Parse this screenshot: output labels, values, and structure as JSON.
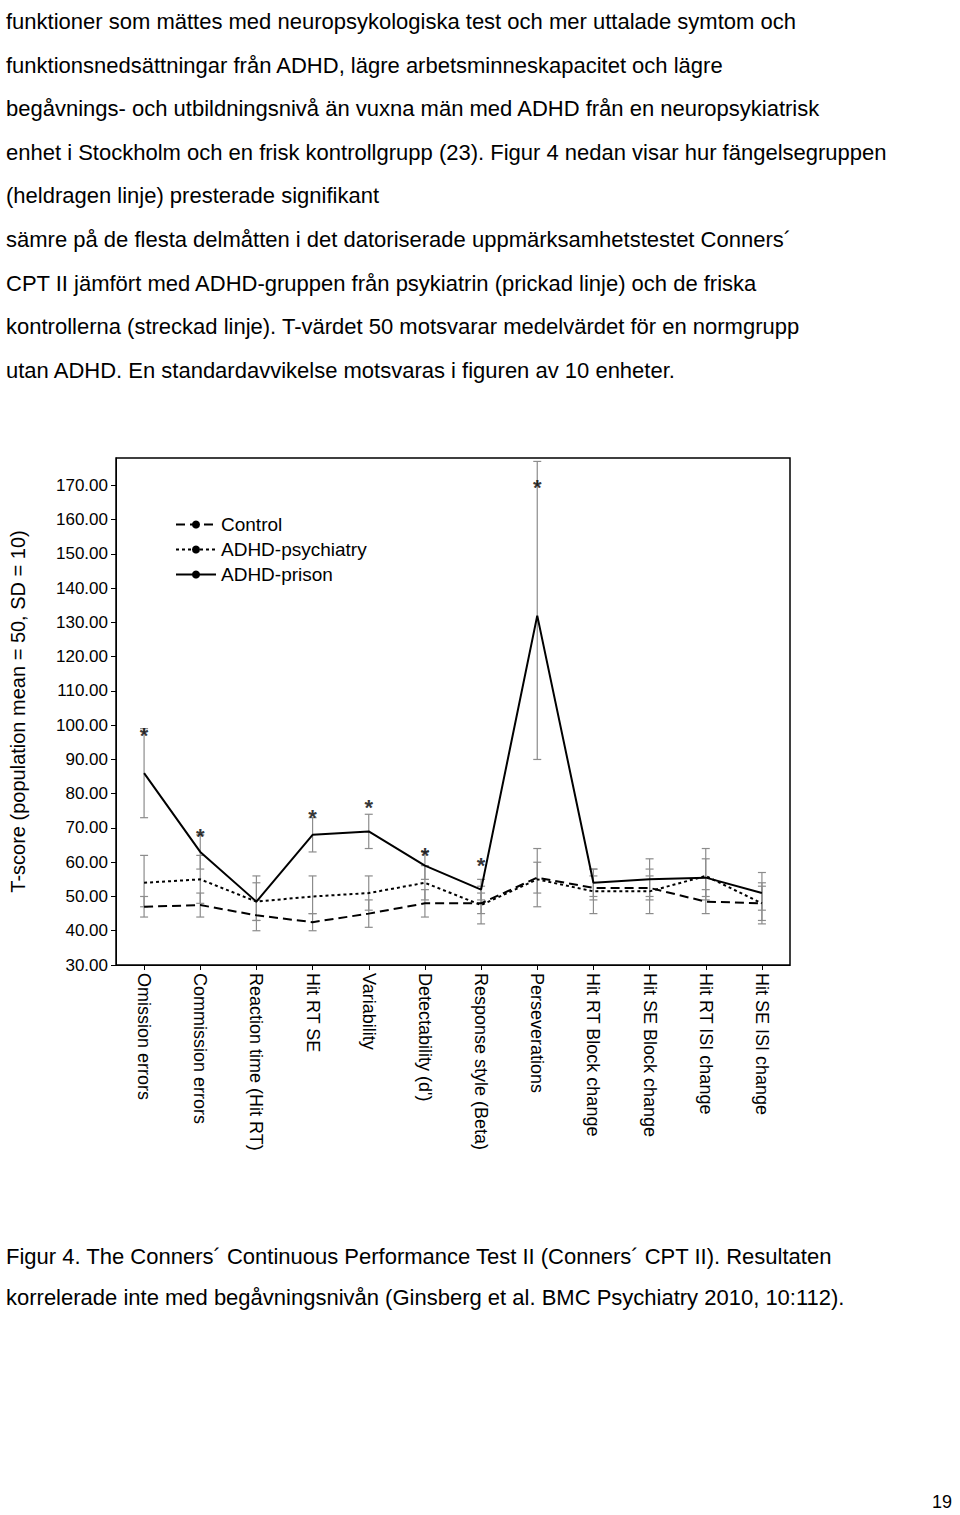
{
  "text_lines": [
    "funktioner som mättes med neuropsykologiska test och mer uttalade symtom och",
    "funktionsnedsättningar från ADHD, lägre arbetsminneskapacitet och lägre",
    "begåvnings- och utbildningsnivå än vuxna män med ADHD från en neuropsykiatrisk",
    "enhet i Stockholm och en frisk kontrollgrupp (23). Figur 4 nedan visar hur fängelsegruppen (heldragen linje) presterade signifikant",
    "sämre på de flesta delmåtten i det datoriserade uppmärksamhetstestet Conners´",
    "CPT II jämfört med ADHD-gruppen från psykiatrin (prickad linje) och de friska",
    "kontrollerna (streckad linje). T-värdet 50 motsvarar medelvärdet för en normgrupp",
    "utan ADHD. En standardavvikelse motsvaras i figuren av 10 enheter."
  ],
  "chart_data": {
    "type": "line",
    "y_label": "T-score (population mean = 50, SD = 10)",
    "categories": [
      "Omission errors",
      "Commission errors",
      "Reaction time (Hit RT)",
      "Hit RT SE",
      "Variability",
      "Detectability (d')",
      "Response style (Beta)",
      "Perseverations",
      "Hit RT Block change",
      "Hit SE Block change",
      "Hit RT ISI change",
      "Hit SE ISI change"
    ],
    "series": [
      {
        "name": "Control",
        "color": "#000000",
        "line_style": "dashed",
        "values": [
          47,
          47.5,
          44.5,
          42.5,
          45,
          48,
          48,
          55.5,
          52.5,
          52.5,
          48.5,
          48
        ],
        "lower": [
          44,
          44,
          40,
          40,
          41,
          44,
          45,
          51,
          49,
          49,
          45,
          43
        ],
        "upper": [
          50,
          51,
          49,
          45,
          49,
          52,
          51,
          60,
          56,
          56,
          52,
          53
        ]
      },
      {
        "name": "ADHD-psychiatry",
        "color": "#000000",
        "line_style": "dotted",
        "values": [
          54,
          55,
          48.5,
          50,
          51,
          54,
          47.5,
          55,
          51.5,
          51.5,
          56,
          48
        ],
        "lower": [
          47,
          48,
          43,
          45,
          46,
          49,
          42,
          47,
          45,
          45,
          49,
          42
        ],
        "upper": [
          62,
          62,
          54,
          56,
          56,
          59,
          53,
          64,
          58,
          58,
          64,
          54
        ]
      },
      {
        "name": "ADHD-prison",
        "color": "#000000",
        "line_style": "solid",
        "values": [
          86,
          63,
          48.5,
          68,
          69,
          59,
          52,
          132,
          54,
          55,
          55.5,
          51
        ],
        "lower": [
          73,
          58,
          43,
          63,
          64,
          55,
          49,
          90,
          50,
          50,
          50,
          46
        ],
        "upper": [
          99,
          68,
          56,
          73,
          74,
          63,
          55,
          177,
          58,
          61,
          61,
          57
        ]
      }
    ],
    "annotations": [
      {
        "category": "Omission errors",
        "y": 97,
        "text": "*"
      },
      {
        "category": "Commission errors",
        "y": 67.5,
        "text": "*"
      },
      {
        "category": "Hit RT SE",
        "y": 73,
        "text": "*"
      },
      {
        "category": "Variability",
        "y": 76,
        "text": "*"
      },
      {
        "category": "Detectability (d')",
        "y": 62,
        "text": "*"
      },
      {
        "category": "Response style (Beta)",
        "y": 59,
        "text": "*"
      },
      {
        "category": "Perseverations",
        "y": 169.5,
        "text": "*"
      }
    ],
    "ylim": [
      30,
      178
    ],
    "yticks": [
      {
        "value": 30,
        "label": "30.00"
      },
      {
        "value": 40,
        "label": "40.00"
      },
      {
        "value": 50,
        "label": "50.00"
      },
      {
        "value": 60,
        "label": "60.00"
      },
      {
        "value": 70,
        "label": "70.00"
      },
      {
        "value": 80,
        "label": "80.00"
      },
      {
        "value": 90,
        "label": "90.00"
      },
      {
        "value": 100,
        "label": "100.00"
      },
      {
        "value": 110,
        "label": "110.00"
      },
      {
        "value": 120,
        "label": "120.00"
      },
      {
        "value": 130,
        "label": "130.00"
      },
      {
        "value": 140,
        "label": "140.00"
      },
      {
        "value": 150,
        "label": "150.00"
      },
      {
        "value": 160,
        "label": "160.00"
      },
      {
        "value": 170,
        "label": "170.00"
      }
    ],
    "legend": "upper left",
    "grid": false
  },
  "caption_lines": [
    "Figur 4. The Conners´ Continuous Performance Test II (Conners´ CPT II). Resultaten",
    "korrelerade inte med begåvningsnivån (Ginsberg et al. BMC Psychiatry 2010, 10:112)."
  ],
  "page_number": "19"
}
